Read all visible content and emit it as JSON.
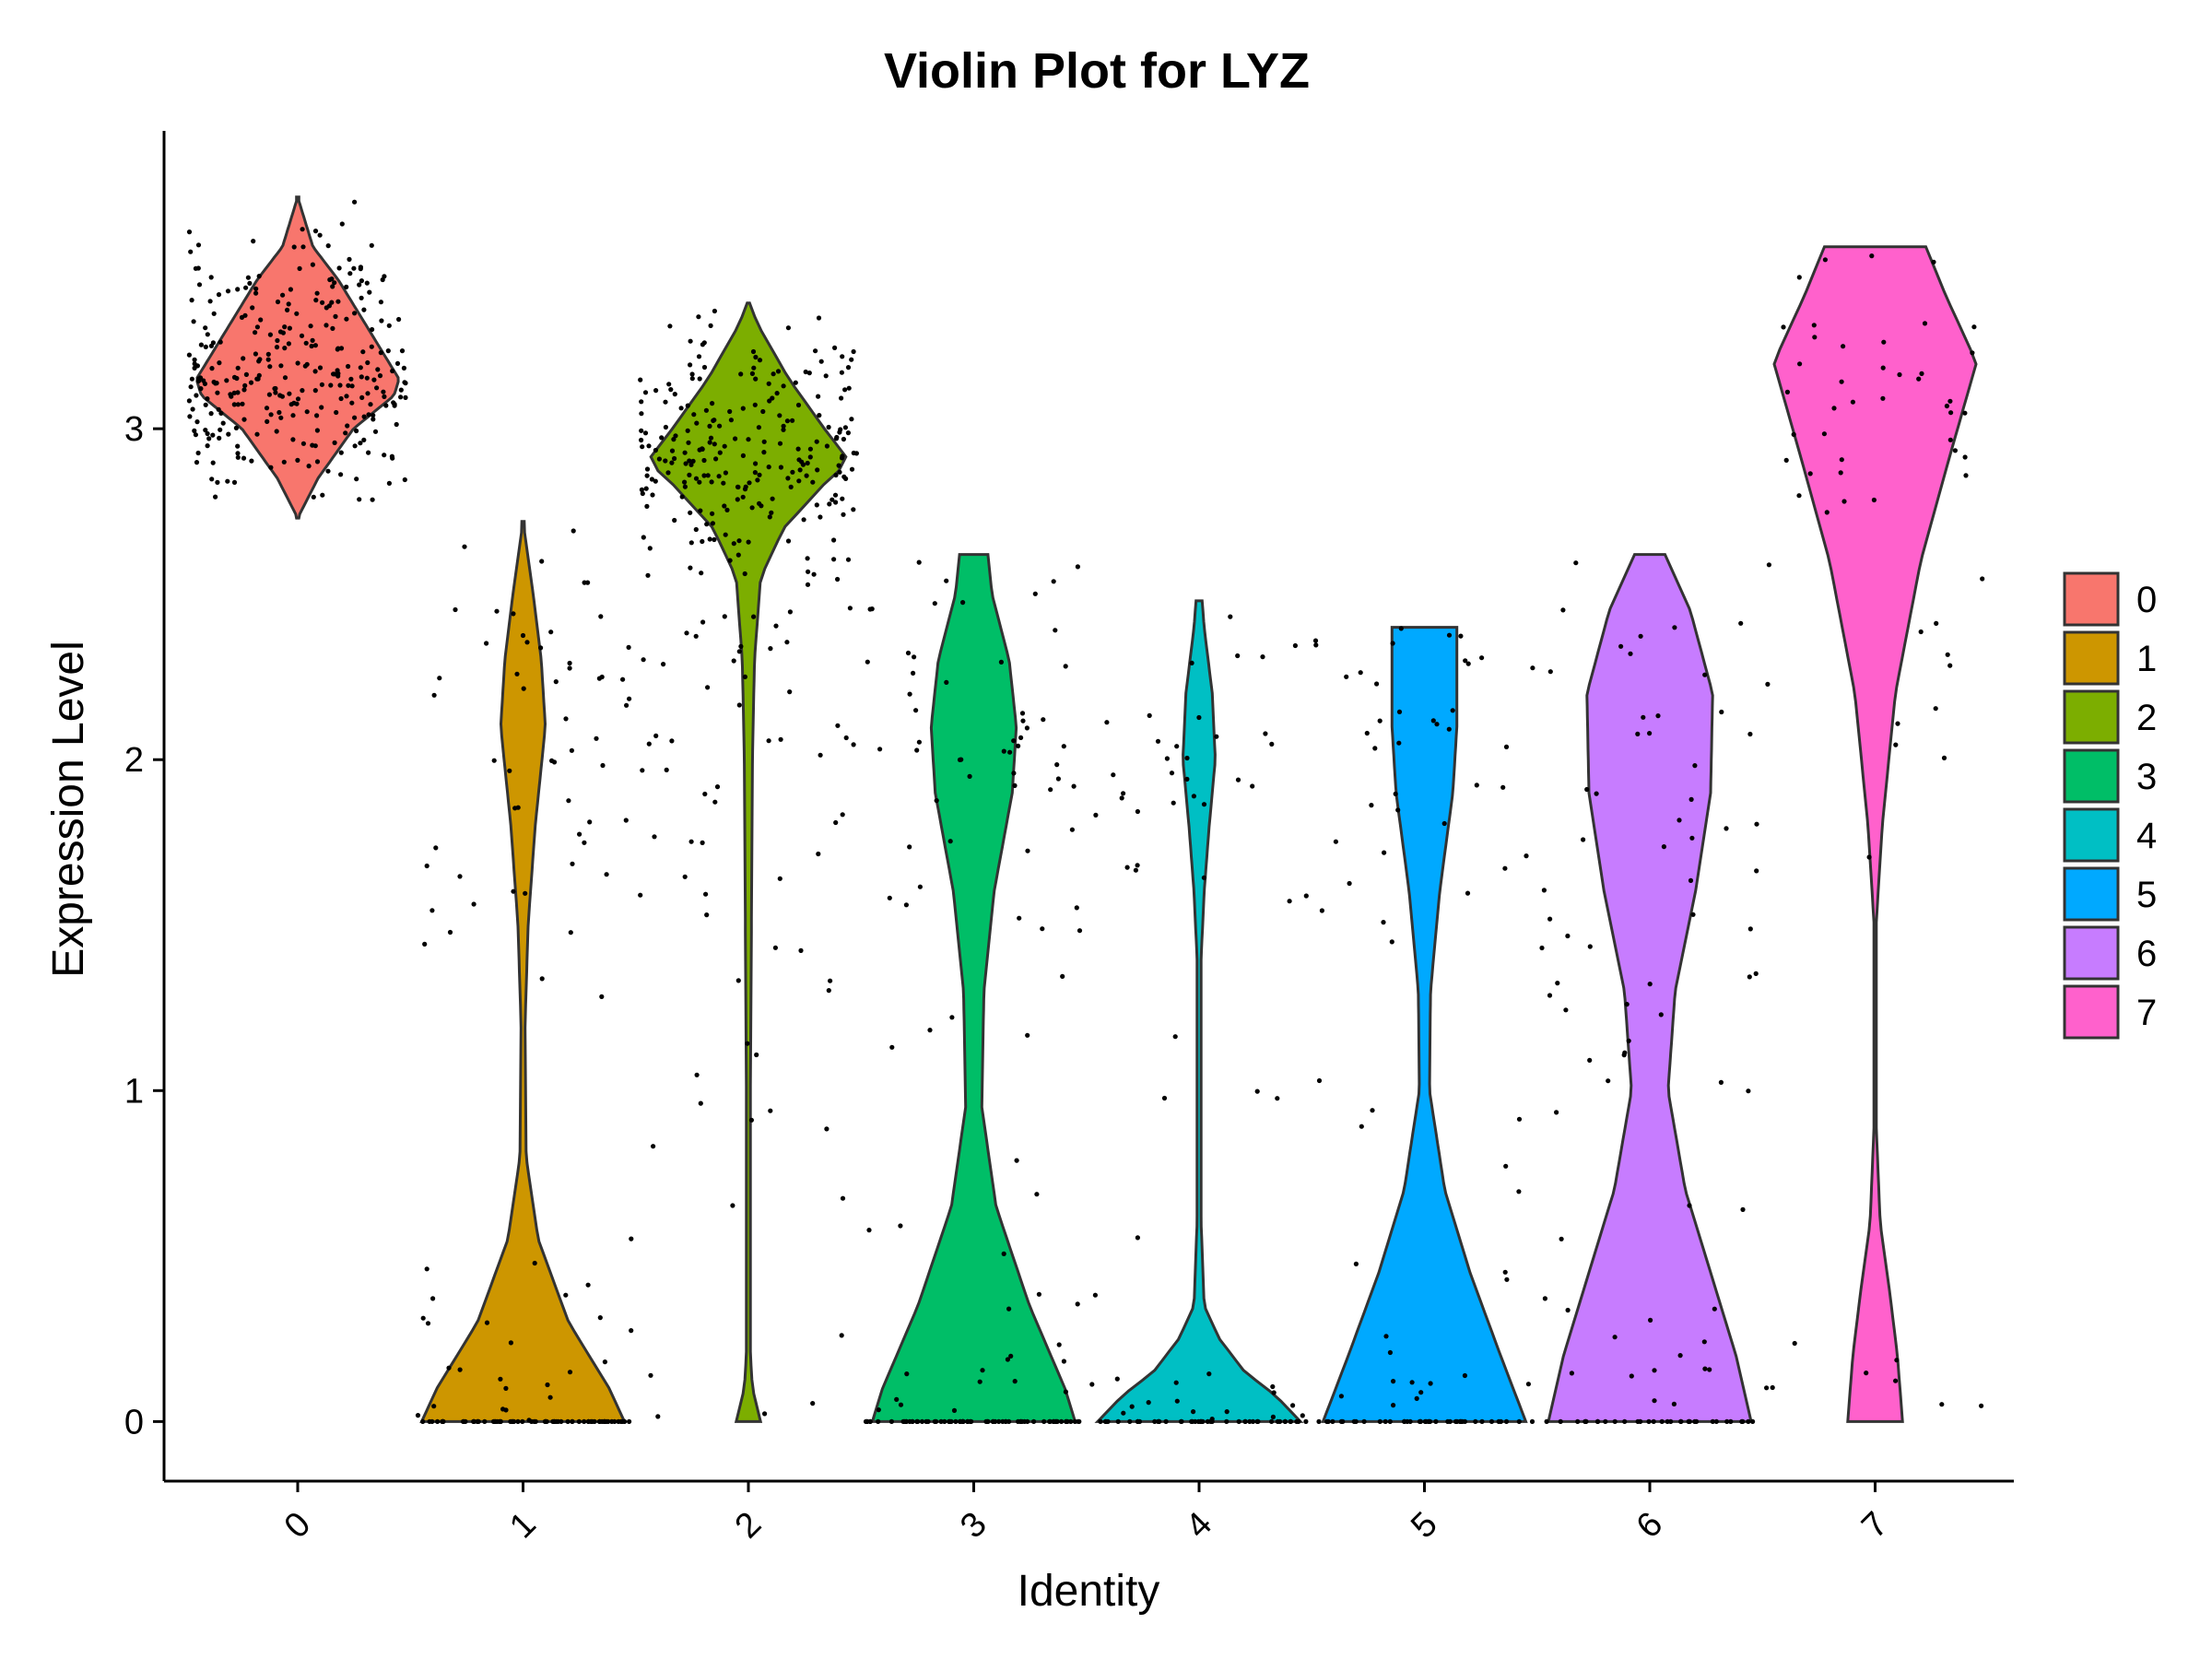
{
  "chart_data": {
    "type": "violin",
    "title": "Violin Plot for LYZ",
    "xlabel": "Identity",
    "ylabel": "Expression Level",
    "categories": [
      "0",
      "1",
      "2",
      "3",
      "4",
      "5",
      "6",
      "7"
    ],
    "ylim": [
      -0.18,
      3.9
    ],
    "yticks": [
      0,
      1,
      2,
      3
    ],
    "legend": {
      "position": "right",
      "entries": [
        "0",
        "1",
        "2",
        "3",
        "4",
        "5",
        "6",
        "7"
      ]
    },
    "grid": false,
    "colors": [
      "#F8766D",
      "#CD9600",
      "#7CAE00",
      "#00BE67",
      "#00BFC4",
      "#00A9FF",
      "#C77CFF",
      "#FF61CC"
    ],
    "series": [
      {
        "name": "0",
        "min": 2.73,
        "max": 3.7,
        "density": [
          [
            2.73,
            0.0
          ],
          [
            2.85,
            0.2
          ],
          [
            3.0,
            0.55
          ],
          [
            3.1,
            0.95
          ],
          [
            3.15,
            1.0
          ],
          [
            3.3,
            0.7
          ],
          [
            3.45,
            0.4
          ],
          [
            3.55,
            0.15
          ],
          [
            3.7,
            0.0
          ]
        ],
        "n_points": 300
      },
      {
        "name": "1",
        "min": 0,
        "max": 2.72,
        "density": [
          [
            0.0,
            1.0
          ],
          [
            0.1,
            0.85
          ],
          [
            0.3,
            0.45
          ],
          [
            0.55,
            0.15
          ],
          [
            0.8,
            0.03
          ],
          [
            1.2,
            0.02
          ],
          [
            1.5,
            0.05
          ],
          [
            1.8,
            0.12
          ],
          [
            2.1,
            0.22
          ],
          [
            2.3,
            0.18
          ],
          [
            2.5,
            0.1
          ],
          [
            2.72,
            0.0
          ]
        ],
        "n_points": 150
      },
      {
        "name": "2",
        "min": 0,
        "max": 3.38,
        "density": [
          [
            0.0,
            0.12
          ],
          [
            0.1,
            0.04
          ],
          [
            0.2,
            0.02
          ],
          [
            1.0,
            0.02
          ],
          [
            1.5,
            0.03
          ],
          [
            2.0,
            0.04
          ],
          [
            2.3,
            0.06
          ],
          [
            2.55,
            0.12
          ],
          [
            2.7,
            0.35
          ],
          [
            2.85,
            0.8
          ],
          [
            2.9,
            1.0
          ],
          [
            3.0,
            0.75
          ],
          [
            3.15,
            0.4
          ],
          [
            3.3,
            0.12
          ],
          [
            3.38,
            0.0
          ]
        ],
        "n_points": 300
      },
      {
        "name": "3",
        "min": 0,
        "max": 2.62,
        "density": [
          [
            0.0,
            1.0
          ],
          [
            0.1,
            0.9
          ],
          [
            0.35,
            0.55
          ],
          [
            0.65,
            0.22
          ],
          [
            0.95,
            0.08
          ],
          [
            1.3,
            0.1
          ],
          [
            1.6,
            0.2
          ],
          [
            1.9,
            0.38
          ],
          [
            2.1,
            0.42
          ],
          [
            2.3,
            0.35
          ],
          [
            2.5,
            0.18
          ],
          [
            2.62,
            0.14
          ]
        ],
        "n_points": 150
      },
      {
        "name": "4",
        "min": 0,
        "max": 2.48,
        "density": [
          [
            0.0,
            1.0
          ],
          [
            0.08,
            0.75
          ],
          [
            0.15,
            0.45
          ],
          [
            0.25,
            0.2
          ],
          [
            0.35,
            0.05
          ],
          [
            0.6,
            0.02
          ],
          [
            1.4,
            0.02
          ],
          [
            1.6,
            0.05
          ],
          [
            1.8,
            0.1
          ],
          [
            2.0,
            0.16
          ],
          [
            2.2,
            0.13
          ],
          [
            2.4,
            0.05
          ],
          [
            2.48,
            0.03
          ]
        ],
        "n_points": 100
      },
      {
        "name": "5",
        "min": 0,
        "max": 2.4,
        "density": [
          [
            0.0,
            1.0
          ],
          [
            0.2,
            0.75
          ],
          [
            0.45,
            0.45
          ],
          [
            0.7,
            0.2
          ],
          [
            1.0,
            0.05
          ],
          [
            1.3,
            0.06
          ],
          [
            1.6,
            0.15
          ],
          [
            1.9,
            0.28
          ],
          [
            2.1,
            0.32
          ],
          [
            2.3,
            0.32
          ],
          [
            2.4,
            0.32
          ]
        ],
        "n_points": 100
      },
      {
        "name": "6",
        "min": 0,
        "max": 2.62,
        "density": [
          [
            0.0,
            1.0
          ],
          [
            0.2,
            0.85
          ],
          [
            0.45,
            0.6
          ],
          [
            0.7,
            0.35
          ],
          [
            1.0,
            0.18
          ],
          [
            1.3,
            0.25
          ],
          [
            1.6,
            0.45
          ],
          [
            1.9,
            0.6
          ],
          [
            2.2,
            0.62
          ],
          [
            2.45,
            0.4
          ],
          [
            2.62,
            0.15
          ]
        ],
        "n_points": 100
      },
      {
        "name": "7",
        "min": 0,
        "max": 3.55,
        "density": [
          [
            0.0,
            0.27
          ],
          [
            0.2,
            0.22
          ],
          [
            0.4,
            0.14
          ],
          [
            0.6,
            0.05
          ],
          [
            0.9,
            0.01
          ],
          [
            1.5,
            0.01
          ],
          [
            1.8,
            0.07
          ],
          [
            2.2,
            0.2
          ],
          [
            2.6,
            0.45
          ],
          [
            2.9,
            0.72
          ],
          [
            3.2,
            1.0
          ],
          [
            3.4,
            0.7
          ],
          [
            3.55,
            0.5
          ]
        ],
        "n_points": 60
      }
    ]
  }
}
